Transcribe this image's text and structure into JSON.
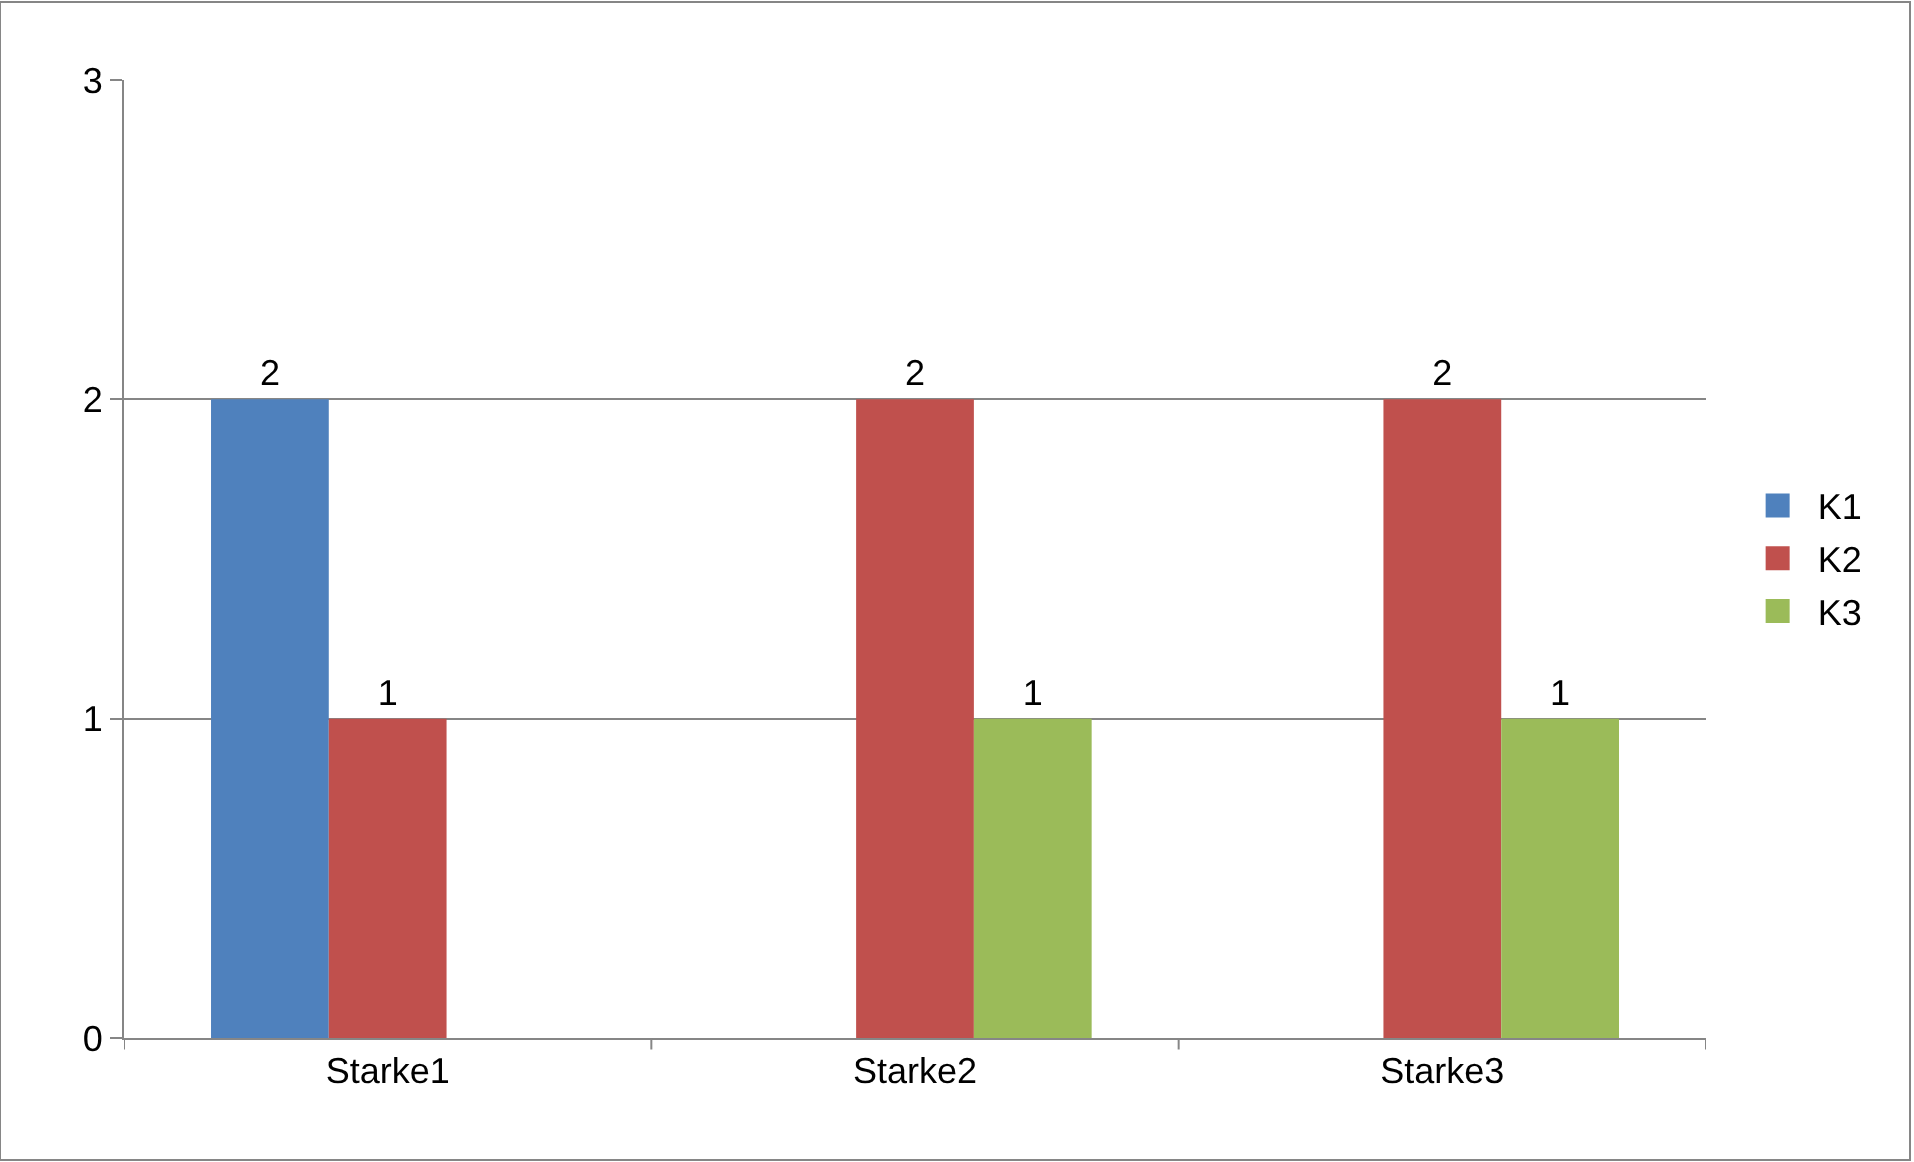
{
  "chart_data": {
    "type": "bar",
    "categories": [
      "Starke1",
      "Starke2",
      "Starke3"
    ],
    "series": [
      {
        "name": "K1",
        "color": "#4f81bd",
        "values": [
          2,
          null,
          null
        ]
      },
      {
        "name": "K2",
        "color": "#c0504d",
        "values": [
          1,
          2,
          2
        ]
      },
      {
        "name": "K3",
        "color": "#9bbb59",
        "values": [
          null,
          1,
          1
        ]
      }
    ],
    "ylim": [
      0,
      3
    ],
    "yticks": [
      0,
      1,
      2,
      3
    ],
    "grid": "y",
    "legend": "right",
    "data_labels": true
  }
}
